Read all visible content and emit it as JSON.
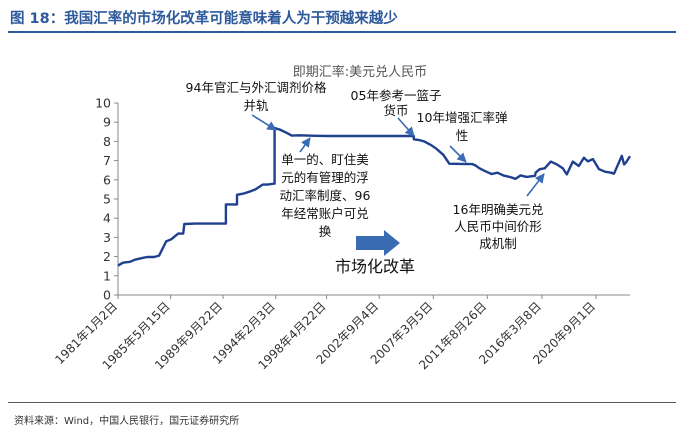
{
  "figure": {
    "title": "图 18：我国汇率的市场化改革可能意味着人为干预越来越少",
    "source": "资料来源：Wind，中国人民银行，国元证券研究所"
  },
  "colors": {
    "line": "#1f3f8f",
    "accent": "#2e5a9c",
    "arrow": "#3a6cb4"
  },
  "chart_data": {
    "type": "line",
    "title": "即期汇率:美元兑人民币",
    "ylim": [
      0,
      10
    ],
    "yticks": [
      0,
      1,
      2,
      3,
      4,
      5,
      6,
      7,
      8,
      9,
      10
    ],
    "xlim": [
      "1981-01-01",
      "2023-06-30"
    ],
    "xticks": [
      "1981年1月2日",
      "1985年5月15日",
      "1989年9月22日",
      "1994年2月3日",
      "1998年4月22日",
      "2002年9月4日",
      "2007年3月5日",
      "2011年8月26日",
      "2016年3月8日",
      "2020年9月1日"
    ],
    "xtick_dates": [
      "1981-01-02",
      "1985-05-15",
      "1989-09-22",
      "1994-02-03",
      "1998-04-22",
      "2002-09-04",
      "2007-03-05",
      "2011-08-26",
      "2016-03-08",
      "2020-09-01"
    ],
    "series": [
      {
        "points": [
          [
            "1981-01-02",
            1.53
          ],
          [
            "1981-06-01",
            1.68
          ],
          [
            "1981-12-31",
            1.73
          ],
          [
            "1982-06-01",
            1.84
          ],
          [
            "1982-12-31",
            1.92
          ],
          [
            "1983-06-01",
            1.98
          ],
          [
            "1983-12-31",
            1.98
          ],
          [
            "1984-06-01",
            2.05
          ],
          [
            "1984-12-31",
            2.79
          ],
          [
            "1985-06-01",
            2.9
          ],
          [
            "1985-12-31",
            3.2
          ],
          [
            "1986-06-01",
            3.2
          ],
          [
            "1986-07-05",
            3.7
          ],
          [
            "1987-06-01",
            3.72
          ],
          [
            "1988-06-01",
            3.72
          ],
          [
            "1989-12-15",
            3.72
          ],
          [
            "1989-12-16",
            4.72
          ],
          [
            "1990-11-16",
            4.72
          ],
          [
            "1990-11-17",
            5.22
          ],
          [
            "1991-06-01",
            5.28
          ],
          [
            "1991-12-31",
            5.4
          ],
          [
            "1992-06-01",
            5.5
          ],
          [
            "1992-12-31",
            5.75
          ],
          [
            "1993-06-01",
            5.75
          ],
          [
            "1993-12-31",
            5.8
          ],
          [
            "1994-01-01",
            8.7
          ],
          [
            "1994-06-01",
            8.62
          ],
          [
            "1994-12-31",
            8.45
          ],
          [
            "1995-06-01",
            8.3
          ],
          [
            "1995-12-31",
            8.32
          ],
          [
            "1996-06-01",
            8.31
          ],
          [
            "1997-06-01",
            8.29
          ],
          [
            "1998-06-01",
            8.28
          ],
          [
            "2000-06-01",
            8.28
          ],
          [
            "2002-06-01",
            8.28
          ],
          [
            "2004-06-01",
            8.28
          ],
          [
            "2005-07-20",
            8.28
          ],
          [
            "2005-07-21",
            8.11
          ],
          [
            "2006-01-01",
            8.07
          ],
          [
            "2006-06-01",
            8.0
          ],
          [
            "2007-01-01",
            7.8
          ],
          [
            "2007-06-01",
            7.62
          ],
          [
            "2008-01-01",
            7.3
          ],
          [
            "2008-07-01",
            6.84
          ],
          [
            "2009-06-01",
            6.83
          ],
          [
            "2010-06-01",
            6.82
          ],
          [
            "2010-09-01",
            6.75
          ],
          [
            "2011-01-01",
            6.6
          ],
          [
            "2011-06-01",
            6.47
          ],
          [
            "2012-01-01",
            6.3
          ],
          [
            "2012-07-01",
            6.37
          ],
          [
            "2013-01-01",
            6.22
          ],
          [
            "2013-07-01",
            6.15
          ],
          [
            "2014-01-01",
            6.05
          ],
          [
            "2014-06-01",
            6.23
          ],
          [
            "2014-12-01",
            6.15
          ],
          [
            "2015-08-10",
            6.21
          ],
          [
            "2015-09-01",
            6.38
          ],
          [
            "2016-01-01",
            6.55
          ],
          [
            "2016-06-01",
            6.6
          ],
          [
            "2016-12-01",
            6.95
          ],
          [
            "2017-06-01",
            6.8
          ],
          [
            "2017-12-01",
            6.6
          ],
          [
            "2018-04-01",
            6.28
          ],
          [
            "2018-10-01",
            6.95
          ],
          [
            "2019-04-01",
            6.72
          ],
          [
            "2019-09-01",
            7.15
          ],
          [
            "2020-01-01",
            6.96
          ],
          [
            "2020-06-01",
            7.08
          ],
          [
            "2020-12-01",
            6.55
          ],
          [
            "2021-06-01",
            6.42
          ],
          [
            "2021-12-01",
            6.37
          ],
          [
            "2022-03-01",
            6.32
          ],
          [
            "2022-10-25",
            7.25
          ],
          [
            "2023-01-01",
            6.8
          ],
          [
            "2023-03-01",
            6.9
          ],
          [
            "2023-06-30",
            7.23
          ]
        ]
      }
    ],
    "annotations": [
      {
        "id": "a94",
        "lines": [
          "94年官汇与外汇调剂价格",
          "并轨"
        ]
      },
      {
        "id": "a05",
        "lines": [
          "05年参考一篮子",
          "货币"
        ]
      },
      {
        "id": "a10",
        "lines": [
          "10年增强汇率弹",
          "性"
        ]
      },
      {
        "id": "a96",
        "lines": [
          "单一的、盯住美",
          "元的有管理的浮",
          "动汇率制度、96",
          "年经常账户可兑",
          "换"
        ]
      },
      {
        "id": "a16",
        "lines": [
          "16年明确美元兑",
          "人民币中间价形",
          "成机制"
        ]
      },
      {
        "id": "mk",
        "lines": [
          "市场化改革"
        ]
      }
    ]
  }
}
